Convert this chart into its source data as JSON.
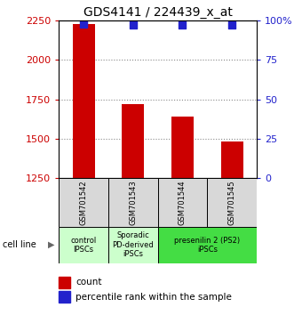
{
  "title": "GDS4141 / 224439_x_at",
  "samples": [
    "GSM701542",
    "GSM701543",
    "GSM701544",
    "GSM701545"
  ],
  "counts": [
    2230,
    1720,
    1640,
    1480
  ],
  "percentiles": [
    98,
    97,
    97,
    97
  ],
  "ylim_left": [
    1250,
    2250
  ],
  "ylim_right": [
    0,
    100
  ],
  "yticks_left": [
    1250,
    1500,
    1750,
    2000,
    2250
  ],
  "yticks_right": [
    0,
    25,
    50,
    75,
    100
  ],
  "bar_color": "#cc0000",
  "dot_color": "#2222cc",
  "bar_bottom": 1250,
  "group_info": [
    [
      0,
      1,
      "#ccffcc",
      "control\nIPSCs"
    ],
    [
      1,
      2,
      "#ccffcc",
      "Sporadic\nPD-derived\niPSCs"
    ],
    [
      2,
      4,
      "#44dd44",
      "presenilin 2 (PS2)\niPSCs"
    ]
  ],
  "cell_line_label": "cell line",
  "legend_count_label": "count",
  "legend_percentile_label": "percentile rank within the sample",
  "sample_bg_color": "#d8d8d8",
  "plot_bg": "#ffffff",
  "dotted_line_color": "#888888",
  "left_tick_color": "#cc0000",
  "right_tick_color": "#2222cc",
  "title_fontsize": 10,
  "tick_fontsize": 8,
  "sample_label_fontsize": 6,
  "group_label_fontsize": 6,
  "legend_fontsize": 7.5
}
